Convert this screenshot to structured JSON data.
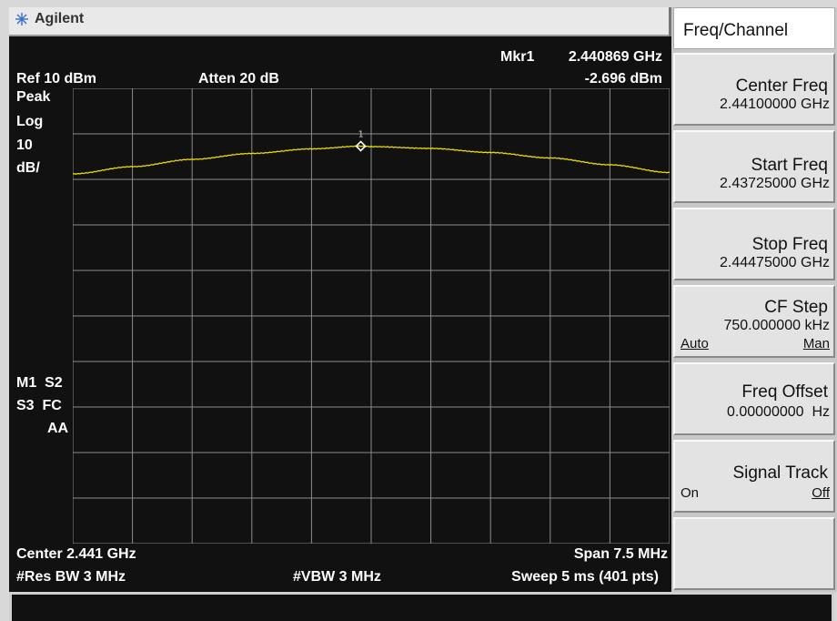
{
  "brand": "Agilent",
  "header": {
    "ref": "Ref 10 dBm",
    "atten": "Atten 20 dB",
    "marker_label": "Mkr1",
    "marker_freq": "2.440869 GHz",
    "marker_level": "-2.696 dBm"
  },
  "left_info": {
    "detector": "Peak",
    "scale_type": "Log",
    "scale_value": "10",
    "scale_unit": "dB/",
    "flags_row1": "M1  S2",
    "flags_row2": "S3  FC",
    "flags_row3": "AA"
  },
  "footer": {
    "center": "Center 2.441 GHz",
    "span": "Span 7.5 MHz",
    "rbw": "#Res BW 3 MHz",
    "vbw": "#VBW 3 MHz",
    "sweep": "Sweep 5 ms (401 pts)"
  },
  "marker_number": "1",
  "colors": {
    "trace": "#e6dc00",
    "grid": "#8c8c8c",
    "screen": "#111111"
  },
  "menu": {
    "title": "Freq/Channel",
    "keys": [
      {
        "label": "Center Freq",
        "value": "2.44100000 GHz"
      },
      {
        "label": "Start Freq",
        "value": "2.43725000 GHz"
      },
      {
        "label": "Stop Freq",
        "value": "2.44475000 GHz"
      },
      {
        "label": "CF Step",
        "value": "750.000000 kHz",
        "left": "Auto",
        "right": "Man"
      },
      {
        "label": "Freq Offset",
        "value": "0.00000000  Hz"
      },
      {
        "label": "Signal Track",
        "left": "On",
        "right": "Off"
      },
      {
        "label": ""
      }
    ]
  },
  "chart_data": {
    "type": "line",
    "x_unit": "GHz",
    "y_unit": "dBm",
    "xlim": [
      2.43725,
      2.44475
    ],
    "ylim": [
      -90,
      10
    ],
    "grid": true,
    "series": [
      {
        "x": [
          2.43725,
          2.438,
          2.43875,
          2.4395,
          2.44025,
          2.44087,
          2.441,
          2.44175,
          2.4425,
          2.44325,
          2.444,
          2.44475
        ],
        "y": [
          -8.8,
          -7.2,
          -5.6,
          -4.3,
          -3.3,
          -2.7,
          -2.8,
          -3.2,
          -4.1,
          -5.3,
          -6.8,
          -8.5
        ]
      }
    ],
    "marker": {
      "label": "1",
      "x": 2.440869,
      "y": -2.696
    }
  }
}
